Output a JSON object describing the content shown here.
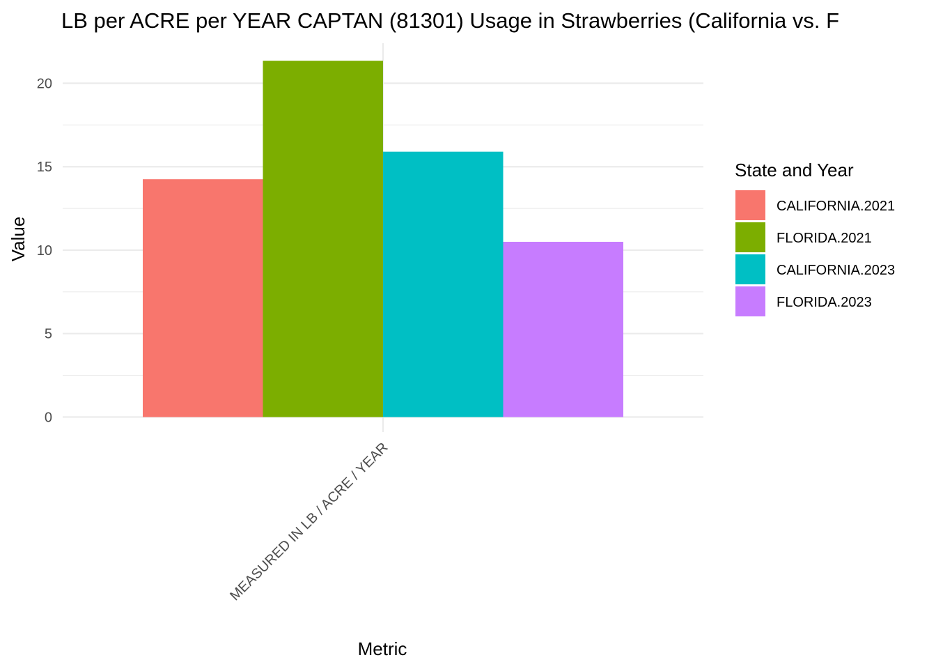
{
  "chart_data": {
    "type": "bar",
    "title": "LB per ACRE per YEAR CAPTAN (81301) Usage in Strawberries (California vs. F",
    "xlabel": "Metric",
    "ylabel": "Value",
    "categories": [
      "MEASURED IN LB / ACRE / YEAR"
    ],
    "series": [
      {
        "name": "CALIFORNIA.2021",
        "values": [
          14.25
        ],
        "color": "#F8766D"
      },
      {
        "name": "FLORIDA.2021",
        "values": [
          21.35
        ],
        "color": "#7CAE00"
      },
      {
        "name": "CALIFORNIA.2023",
        "values": [
          15.9
        ],
        "color": "#00BFC4"
      },
      {
        "name": "FLORIDA.2023",
        "values": [
          10.5
        ],
        "color": "#C77CFF"
      }
    ],
    "ylim": [
      -0.9,
      22.4
    ],
    "y_ticks": [
      0,
      5,
      10,
      15,
      20
    ],
    "grid": true,
    "legend": {
      "title": "State and Year",
      "position": "right"
    }
  }
}
